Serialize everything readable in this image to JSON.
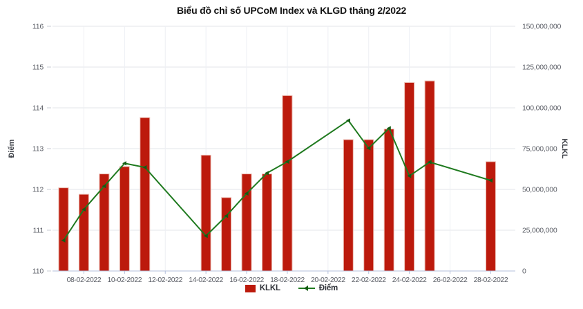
{
  "title": "Biểu đồ chỉ số UPCoM Index và KLGD tháng 2/2022",
  "legend": {
    "volume_label": "KLKL",
    "index_label": "Điểm"
  },
  "colors": {
    "bar": "#bc1a0c",
    "bar_edge": "#ecbcb2",
    "line": "#1f7a1f",
    "marker": "#145c14",
    "grid_h": "#e3e4e8",
    "grid_v": "#edeff4",
    "axis_line": "#b3bfdb",
    "tick_text": "#5b5e66",
    "axis_title_text": "#3e4148"
  },
  "chart_data": {
    "type": "bar",
    "subtype": "combo-bar-line-dual-axis",
    "title": "Biểu đồ chỉ số UPCoM Index và KLGD tháng 2/2022",
    "categories": [
      "07-02-2022",
      "08-02-2022",
      "09-02-2022",
      "10-02-2022",
      "11-02-2022",
      "14-02-2022",
      "15-02-2022",
      "16-02-2022",
      "17-02-2022",
      "18-02-2022",
      "21-02-2022",
      "22-02-2022",
      "23-02-2022",
      "24-02-2022",
      "25-02-2022",
      "28-02-2022"
    ],
    "day_offsets": [
      0,
      1,
      2,
      3,
      4,
      7,
      8,
      9,
      10,
      11,
      14,
      15,
      16,
      17,
      18,
      21
    ],
    "series": [
      {
        "name": "KLKL",
        "type": "bar",
        "axis": "right",
        "values": [
          51000000,
          47000000,
          59500000,
          64000000,
          94000000,
          71000000,
          45000000,
          59500000,
          59500000,
          107500000,
          80500000,
          80500000,
          87000000,
          115500000,
          116500000,
          67000000
        ]
      },
      {
        "name": "Điểm",
        "type": "line",
        "axis": "left",
        "values": [
          110.75,
          111.51,
          112.08,
          112.64,
          112.54,
          110.86,
          111.35,
          111.9,
          112.4,
          112.68,
          113.69,
          113.01,
          113.5,
          112.33,
          112.67,
          112.22
        ]
      }
    ],
    "left_axis": {
      "label": "Điểm",
      "min": 110,
      "max": 116,
      "tick_step": 1,
      "tick_labels": [
        "110",
        "111",
        "112",
        "113",
        "114",
        "115",
        "116"
      ]
    },
    "right_axis": {
      "label": "KLKL",
      "min": 0,
      "max": 150000000,
      "tick_step": 25000000,
      "tick_labels": [
        "0",
        "25,000,000",
        "50,000,000",
        "75,000,000",
        "100,000,000",
        "125,000,000",
        "150,000,000"
      ]
    },
    "x_axis": {
      "tick_day_offsets": [
        1,
        3,
        5,
        7,
        9,
        11,
        13,
        15,
        17,
        19,
        21
      ],
      "tick_labels": [
        "08-02-2022",
        "10-02-2022",
        "12-02-2022",
        "14-02-2022",
        "16-02-2022",
        "18-02-2022",
        "20-02-2022",
        "22-02-2022",
        "24-02-2022",
        "26-02-2022",
        "28-02-2022"
      ]
    },
    "grid": true,
    "legend_position": "bottom"
  }
}
